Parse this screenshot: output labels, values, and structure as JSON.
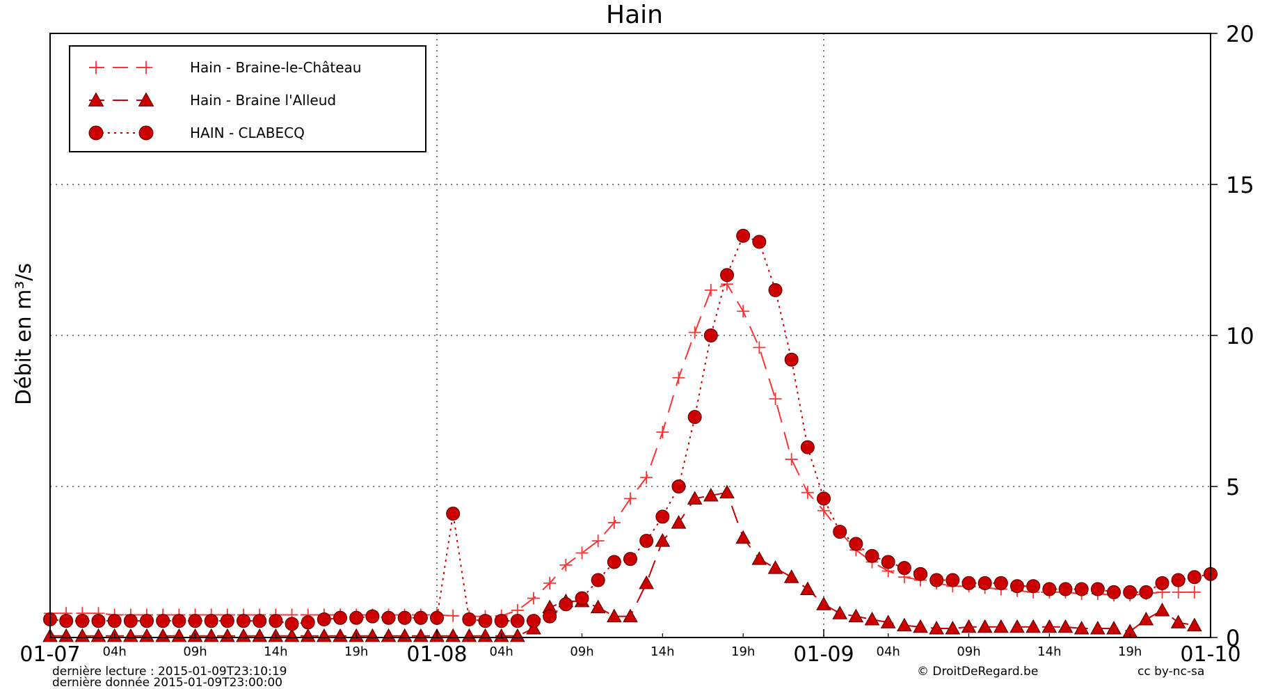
{
  "chart_data": {
    "type": "line",
    "title": "Hain",
    "ylabel": "Débit en m³/s",
    "xlabel": "",
    "ylim": [
      0,
      20
    ],
    "y_ticks": [
      0,
      5,
      10,
      15,
      20
    ],
    "x_unit": "hours since 01-07 00h",
    "xlim": [
      0,
      72
    ],
    "x_major_ticks": [
      {
        "x": 0,
        "label": "01-07"
      },
      {
        "x": 24,
        "label": "01-08"
      },
      {
        "x": 48,
        "label": "01-09"
      },
      {
        "x": 72,
        "label": "01-10"
      }
    ],
    "x_minor_ticks": [
      {
        "x": 4,
        "label": "04h"
      },
      {
        "x": 9,
        "label": "09h"
      },
      {
        "x": 14,
        "label": "14h"
      },
      {
        "x": 19,
        "label": "19h"
      },
      {
        "x": 28,
        "label": "04h"
      },
      {
        "x": 33,
        "label": "09h"
      },
      {
        "x": 38,
        "label": "14h"
      },
      {
        "x": 43,
        "label": "19h"
      },
      {
        "x": 52,
        "label": "04h"
      },
      {
        "x": 57,
        "label": "09h"
      },
      {
        "x": 62,
        "label": "14h"
      },
      {
        "x": 67,
        "label": "19h"
      }
    ],
    "x_grid": [
      24,
      48
    ],
    "y_grid": [
      5,
      10,
      15
    ],
    "legend_position": "top-left",
    "series": [
      {
        "name": "Hain - Braine-le-Château",
        "color": "#ff3333",
        "marker": "plus",
        "line": "dashed",
        "x": [
          0,
          1,
          2,
          3,
          4,
          5,
          6,
          7,
          8,
          9,
          10,
          11,
          12,
          13,
          14,
          15,
          16,
          17,
          18,
          19,
          20,
          21,
          22,
          23,
          24,
          25,
          26,
          27,
          28,
          29,
          30,
          31,
          32,
          33,
          34,
          35,
          36,
          37,
          38,
          39,
          40,
          41,
          42,
          43,
          44,
          45,
          46,
          47,
          48,
          49,
          50,
          51,
          52,
          53,
          54,
          55,
          56,
          57,
          58,
          59,
          60,
          61,
          62,
          63,
          64,
          65,
          66,
          67,
          68,
          69,
          70,
          71
        ],
        "y": [
          0.8,
          0.8,
          0.8,
          0.8,
          0.75,
          0.75,
          0.75,
          0.75,
          0.75,
          0.75,
          0.75,
          0.75,
          0.75,
          0.75,
          0.75,
          0.75,
          0.75,
          0.75,
          0.75,
          0.75,
          0.75,
          0.75,
          0.75,
          0.75,
          0.75,
          0.72,
          0.7,
          0.7,
          0.72,
          0.9,
          1.3,
          1.8,
          2.4,
          2.8,
          3.2,
          3.8,
          4.6,
          5.3,
          6.8,
          8.6,
          10.1,
          11.5,
          11.7,
          10.8,
          9.6,
          7.9,
          5.9,
          4.8,
          4.2,
          3.5,
          2.9,
          2.5,
          2.2,
          2.0,
          1.9,
          1.8,
          1.7,
          1.7,
          1.65,
          1.6,
          1.55,
          1.5,
          1.5,
          1.5,
          1.45,
          1.45,
          1.4,
          1.4,
          1.45,
          1.5,
          1.5,
          1.5
        ]
      },
      {
        "name": "Hain - Braine l'Alleud",
        "color": "#cc0000",
        "marker": "triangle",
        "line": "dashed",
        "x": [
          0,
          1,
          2,
          3,
          4,
          5,
          6,
          7,
          8,
          9,
          10,
          11,
          12,
          13,
          14,
          15,
          16,
          17,
          18,
          19,
          20,
          21,
          22,
          23,
          24,
          25,
          26,
          27,
          28,
          29,
          30,
          31,
          32,
          33,
          34,
          35,
          36,
          37,
          38,
          39,
          40,
          41,
          42,
          43,
          44,
          45,
          46,
          47,
          48,
          49,
          50,
          51,
          52,
          53,
          54,
          55,
          56,
          57,
          58,
          59,
          60,
          61,
          62,
          63,
          64,
          65,
          66,
          67,
          68,
          69,
          70,
          71
        ],
        "y": [
          0.05,
          0.05,
          0.05,
          0.05,
          0.05,
          0.05,
          0.05,
          0.05,
          0.05,
          0.05,
          0.05,
          0.05,
          0.05,
          0.05,
          0.05,
          0.05,
          0.05,
          0.05,
          0.05,
          0.05,
          0.05,
          0.05,
          0.05,
          0.05,
          0.05,
          0.05,
          0.05,
          0.05,
          0.05,
          0.05,
          0.3,
          1.0,
          1.2,
          1.2,
          1.0,
          0.7,
          0.7,
          1.8,
          3.2,
          3.8,
          4.6,
          4.7,
          4.8,
          3.3,
          2.6,
          2.3,
          2.0,
          1.6,
          1.1,
          0.8,
          0.7,
          0.6,
          0.5,
          0.4,
          0.35,
          0.3,
          0.3,
          0.35,
          0.35,
          0.35,
          0.35,
          0.35,
          0.35,
          0.35,
          0.3,
          0.3,
          0.3,
          0.2,
          0.6,
          0.9,
          0.5,
          0.4
        ]
      },
      {
        "name": "HAIN - CLABECQ",
        "color": "#cc0000",
        "marker": "circle",
        "line": "dotted",
        "x": [
          0,
          1,
          2,
          3,
          4,
          5,
          6,
          7,
          8,
          9,
          10,
          11,
          12,
          13,
          14,
          15,
          16,
          17,
          18,
          19,
          20,
          21,
          22,
          23,
          24,
          25,
          26,
          27,
          28,
          29,
          30,
          31,
          32,
          33,
          34,
          35,
          36,
          37,
          38,
          39,
          40,
          41,
          42,
          43,
          44,
          45,
          46,
          47,
          48,
          49,
          50,
          51,
          52,
          53,
          54,
          55,
          56,
          57,
          58,
          59,
          60,
          61,
          62,
          63,
          64,
          65,
          66,
          67,
          68,
          69,
          70,
          71,
          72
        ],
        "y": [
          0.6,
          0.55,
          0.55,
          0.55,
          0.55,
          0.55,
          0.55,
          0.55,
          0.55,
          0.55,
          0.55,
          0.55,
          0.55,
          0.55,
          0.55,
          0.45,
          0.5,
          0.6,
          0.65,
          0.65,
          0.7,
          0.65,
          0.65,
          0.65,
          0.65,
          4.1,
          0.6,
          0.55,
          0.55,
          0.55,
          0.55,
          0.7,
          1.1,
          1.3,
          1.9,
          2.5,
          2.6,
          3.2,
          4.0,
          5.0,
          7.3,
          10.0,
          12.0,
          13.3,
          13.1,
          11.5,
          9.2,
          6.3,
          4.6,
          3.5,
          3.1,
          2.7,
          2.5,
          2.3,
          2.1,
          1.9,
          1.9,
          1.8,
          1.8,
          1.8,
          1.7,
          1.7,
          1.6,
          1.6,
          1.6,
          1.6,
          1.5,
          1.5,
          1.5,
          1.8,
          1.9,
          2.0,
          2.1
        ]
      }
    ],
    "footer": {
      "last_read": "dernière lecture : 2015-01-09T23:10:19",
      "last_data": "dernière donnée  2015-01-09T23:00:00",
      "credit": "© DroitDeRegard.be",
      "license": "cc by-nc-sa"
    }
  }
}
